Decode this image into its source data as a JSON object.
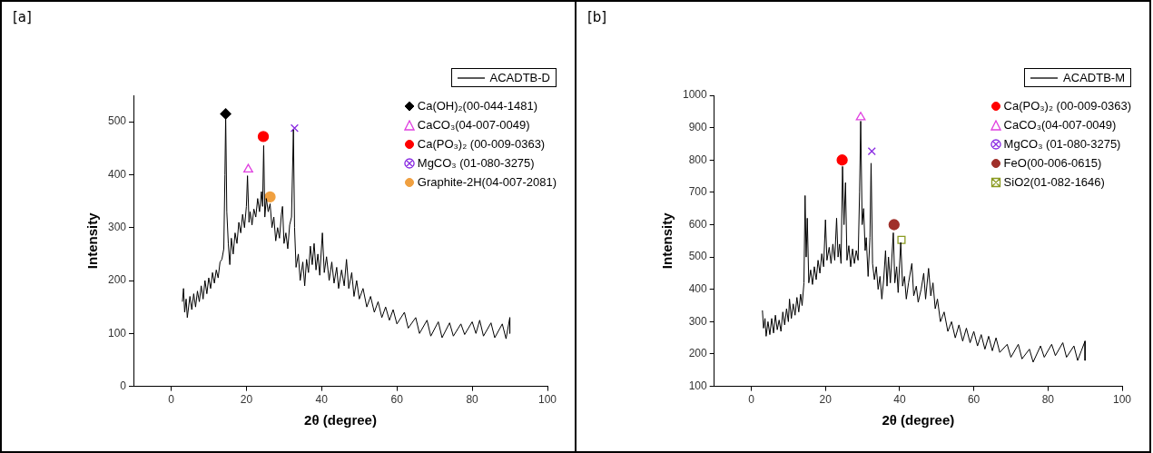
{
  "chart_data": [
    {
      "type": "line",
      "title": "[a]",
      "xlabel": "2θ (degree)",
      "ylabel": "Intensity",
      "xlim": [
        -10,
        100
      ],
      "xticks": [
        0,
        20,
        40,
        60,
        80,
        100
      ],
      "ylim": [
        0,
        550
      ],
      "yticks": [
        0,
        100,
        200,
        300,
        400,
        500
      ],
      "grid": false,
      "legend": "top right",
      "series": [
        {
          "name": "ACADTB-D",
          "color": "#000000",
          "marker": "none",
          "line_style": "solid",
          "x": [
            3,
            3.3,
            3.6,
            4,
            4.3,
            5,
            5.5,
            6,
            6.5,
            7,
            7.5,
            8,
            8.5,
            9,
            9.5,
            10,
            10.5,
            11,
            11.5,
            12,
            12.5,
            13,
            13.5,
            14,
            14.3,
            14.5,
            14.8,
            15.2,
            15.6,
            16,
            16.5,
            17,
            17.5,
            18,
            18.5,
            19,
            19.5,
            20,
            20.3,
            20.7,
            21,
            21.5,
            22,
            22.5,
            23,
            23.5,
            24,
            24.3,
            24.6,
            24.9,
            25.3,
            25.8,
            26.3,
            26.8,
            27.3,
            27.8,
            28.3,
            28.8,
            29.3,
            29.6,
            30,
            30.5,
            31,
            31.5,
            32,
            32.5,
            32.8,
            33.2,
            33.8,
            34.3,
            35,
            35.5,
            36,
            36.5,
            37,
            37.5,
            38,
            38.5,
            39,
            39.5,
            40.2,
            40.7,
            41.3,
            42,
            42.7,
            43.3,
            44,
            44.5,
            45.3,
            46,
            46.6,
            47.2,
            48,
            48.6,
            49.3,
            50,
            51,
            52,
            53,
            54,
            55,
            56,
            57,
            58,
            59,
            60,
            62,
            63,
            65,
            66,
            68,
            69,
            71,
            72,
            74,
            75,
            77,
            78,
            80,
            81,
            82,
            83,
            85,
            86,
            88,
            89,
            90,
            90
          ],
          "values": [
            160,
            185,
            140,
            165,
            130,
            170,
            145,
            175,
            150,
            180,
            160,
            190,
            165,
            200,
            175,
            205,
            185,
            215,
            195,
            220,
            205,
            235,
            240,
            260,
            400,
            512,
            330,
            270,
            230,
            280,
            250,
            290,
            270,
            310,
            290,
            325,
            300,
            340,
            398,
            310,
            330,
            305,
            335,
            320,
            355,
            330,
            368,
            340,
            455,
            320,
            355,
            330,
            345,
            300,
            320,
            275,
            300,
            280,
            325,
            340,
            270,
            290,
            260,
            305,
            320,
            485,
            300,
            225,
            250,
            200,
            235,
            190,
            240,
            215,
            265,
            230,
            270,
            220,
            250,
            210,
            290,
            215,
            245,
            200,
            235,
            195,
            225,
            185,
            220,
            190,
            240,
            185,
            215,
            170,
            200,
            165,
            185,
            150,
            170,
            140,
            160,
            130,
            150,
            125,
            145,
            118,
            140,
            110,
            130,
            100,
            125,
            95,
            122,
            92,
            120,
            95,
            118,
            98,
            122,
            100,
            125,
            95,
            120,
            92,
            118,
            90,
            130,
            100
          ]
        },
        {
          "name": "Ca(OH)₂(00-044-1481)",
          "type": "scatter",
          "color": "#000000",
          "marker": "diamond",
          "x": [
            14.5
          ],
          "values": [
            515
          ]
        },
        {
          "name": "CaCO₃(04-007-0049)",
          "type": "scatter",
          "color": "#e040e0",
          "marker": "triangle",
          "x": [
            20.5
          ],
          "values": [
            410
          ]
        },
        {
          "name": "Ca(PO₃)₂ (00-009-0363)",
          "type": "scatter",
          "color": "#ff0000",
          "marker": "circle",
          "x": [
            24.5
          ],
          "values": [
            472
          ]
        },
        {
          "name": "MgCO₃ (01-080-3275)",
          "type": "scatter",
          "color": "#8a2be2",
          "marker": "cross",
          "x": [
            32.8
          ],
          "values": [
            488
          ]
        },
        {
          "name": "Graphite-2H(04-007-2081)",
          "type": "scatter",
          "color": "#f0a040",
          "marker": "circle",
          "x": [
            26.3
          ],
          "values": [
            358
          ]
        }
      ]
    },
    {
      "type": "line",
      "title": "[b]",
      "xlabel": "2θ (degree)",
      "ylabel": "Intensity",
      "xlim": [
        -10,
        100
      ],
      "xticks": [
        0,
        20,
        40,
        60,
        80,
        100
      ],
      "ylim": [
        100,
        1000
      ],
      "yticks": [
        100,
        200,
        300,
        400,
        500,
        600,
        700,
        800,
        900,
        1000
      ],
      "grid": false,
      "legend": "top right",
      "series": [
        {
          "name": "ACADTB-M",
          "color": "#000000",
          "marker": "none",
          "line_style": "solid",
          "x": [
            3,
            3.3,
            3.7,
            4,
            4.5,
            5,
            5.5,
            6,
            6.5,
            7,
            7.5,
            8,
            8.5,
            9,
            9.5,
            10,
            10.3,
            10.8,
            11.3,
            11.8,
            12.3,
            12.8,
            13.3,
            13.7,
            14.2,
            14.5,
            14.8,
            15.1,
            15.5,
            16,
            16.5,
            17,
            17.5,
            18,
            18.5,
            19,
            19.5,
            20,
            20.4,
            21,
            21.5,
            22,
            22.5,
            23,
            23.4,
            23.8,
            24.2,
            24.6,
            25,
            25.4,
            25.8,
            26.3,
            26.8,
            27.3,
            27.8,
            28.3,
            28.8,
            29.2,
            29.5,
            29.9,
            30.3,
            30.7,
            31,
            31.5,
            32,
            32.3,
            32.7,
            33.2,
            33.7,
            34.2,
            34.7,
            35.2,
            35.7,
            36.2,
            36.6,
            37,
            37.5,
            38.3,
            38.7,
            39.2,
            39.6,
            40.3,
            40.8,
            41.3,
            41.8,
            42.4,
            43.3,
            43.8,
            44.5,
            45,
            45.8,
            46.5,
            47,
            47.8,
            48.4,
            49,
            49.6,
            50.2,
            51,
            52,
            53,
            54,
            55,
            56,
            57,
            58,
            59,
            60,
            61,
            62,
            63,
            64,
            65,
            66,
            67,
            69,
            70,
            72,
            73,
            75,
            76,
            78,
            79,
            81,
            82,
            84,
            85,
            87,
            88,
            89,
            90,
            90
          ],
          "values": [
            335,
            280,
            310,
            255,
            300,
            260,
            310,
            265,
            320,
            275,
            305,
            270,
            330,
            290,
            340,
            300,
            370,
            310,
            355,
            320,
            375,
            330,
            385,
            350,
            420,
            690,
            500,
            620,
            420,
            460,
            415,
            470,
            430,
            490,
            450,
            510,
            470,
            615,
            490,
            530,
            480,
            540,
            490,
            620,
            500,
            540,
            480,
            780,
            600,
            730,
            490,
            535,
            470,
            525,
            480,
            520,
            490,
            700,
            920,
            600,
            650,
            520,
            560,
            440,
            560,
            790,
            480,
            430,
            470,
            400,
            440,
            370,
            430,
            520,
            410,
            500,
            420,
            575,
            420,
            470,
            390,
            545,
            410,
            440,
            370,
            420,
            480,
            380,
            410,
            360,
            400,
            450,
            370,
            465,
            380,
            420,
            340,
            370,
            300,
            330,
            270,
            300,
            250,
            290,
            240,
            280,
            235,
            270,
            225,
            260,
            215,
            255,
            210,
            250,
            205,
            230,
            190,
            230,
            185,
            215,
            175,
            225,
            190,
            230,
            195,
            235,
            190,
            225,
            180,
            210,
            240,
            180
          ]
        },
        {
          "name": "Ca(PO₃)₂ (00-009-0363)",
          "type": "scatter",
          "color": "#ff0000",
          "marker": "circle",
          "x": [
            24.5
          ],
          "values": [
            800
          ]
        },
        {
          "name": "CaCO₃(04-007-0049)",
          "type": "scatter",
          "color": "#e040e0",
          "marker": "triangle",
          "x": [
            29.5
          ],
          "values": [
            932
          ]
        },
        {
          "name": "MgCO₃ (01-080-3275)",
          "type": "scatter",
          "color": "#8a2be2",
          "marker": "cross",
          "x": [
            32.5
          ],
          "values": [
            827
          ]
        },
        {
          "name": "FeO(00-006-0615)",
          "type": "scatter",
          "color": "#a0302a",
          "marker": "circle",
          "x": [
            38.5
          ],
          "values": [
            600
          ]
        },
        {
          "name": "SiO2(01-082-1646)",
          "type": "scatter",
          "color": "#8a9a20",
          "marker": "square",
          "x": [
            40.5
          ],
          "values": [
            553
          ]
        }
      ]
    }
  ]
}
